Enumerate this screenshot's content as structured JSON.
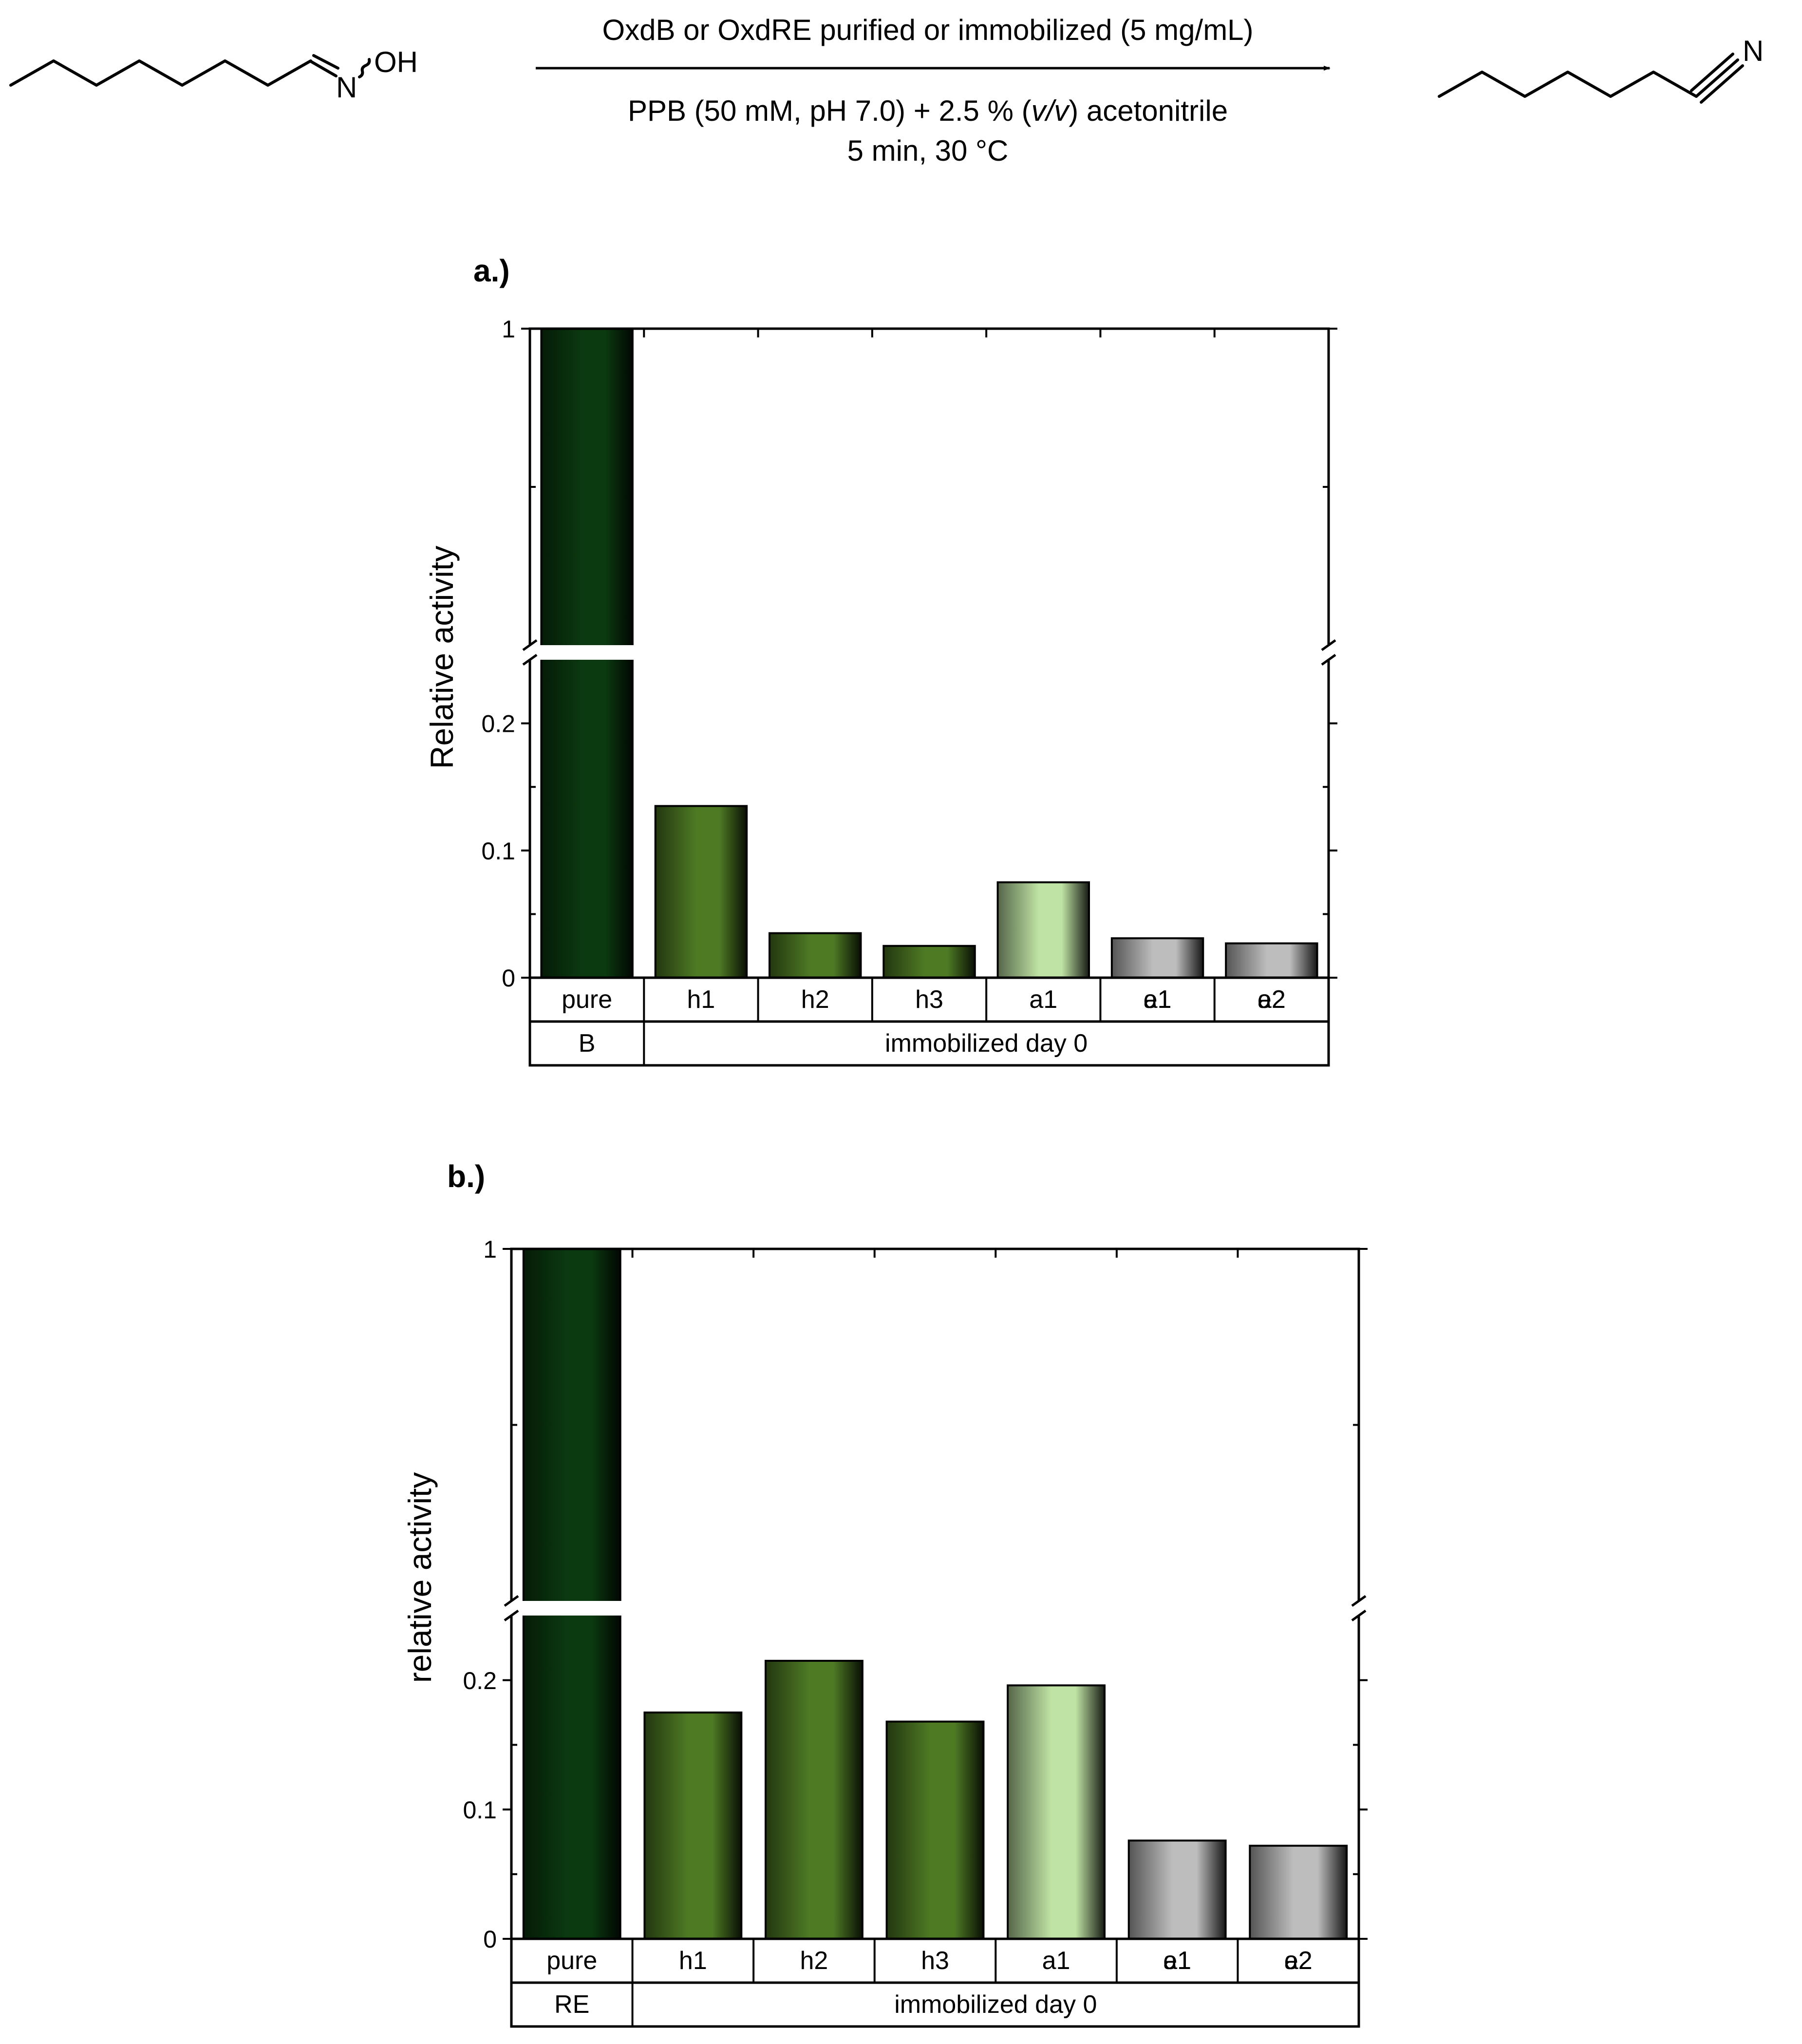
{
  "scheme": {
    "substrate_label": "N",
    "substrate_oh": "OH",
    "product_label": "N",
    "arrow_top": "OxdB or OxdRE purified or immobilized (5 mg/mL)",
    "arrow_bottom_line1_a": "PPB (50 mM, pH 7.0) + 2.5 % (",
    "arrow_bottom_line1_italic": "v/v",
    "arrow_bottom_line1_b": ") acetonitrile",
    "arrow_bottom_line2": "5 min, 30 °C"
  },
  "colors": {
    "pure": "#0b3a10",
    "green": "#4e7a24",
    "light_green": "#bfe3a4",
    "grey": "#bdbdbd"
  },
  "chart_data": [
    {
      "type": "bar",
      "panel_label": "a.)",
      "ylabel": "Relative activity",
      "categories": [
        "pure",
        "h1",
        "h2",
        "h3",
        "a1",
        "e1",
        "e2"
      ],
      "category_overlays": [
        "",
        "",
        "",
        "",
        "",
        "a1",
        "a2"
      ],
      "values": [
        1.0,
        0.135,
        0.035,
        0.025,
        0.075,
        0.031,
        0.027
      ],
      "color_keys": [
        "pure",
        "green",
        "green",
        "green",
        "light_green",
        "grey",
        "grey"
      ],
      "groups": [
        {
          "label": "B",
          "span": 1
        },
        {
          "label": "immobilized day 0",
          "span": 6
        }
      ],
      "y_break": [
        0.25,
        0.75
      ],
      "yticks_lower": [
        0,
        0.1,
        0.2
      ],
      "ytick_labels_lower": [
        "0",
        "0.1",
        "0.2"
      ],
      "yticks_upper": [
        1
      ],
      "ytick_labels_upper": [
        "1"
      ]
    },
    {
      "type": "bar",
      "panel_label": "b.)",
      "ylabel": "relative activity",
      "categories": [
        "pure",
        "h1",
        "h2",
        "h3",
        "a1",
        "e1",
        "e2"
      ],
      "category_overlays": [
        "",
        "",
        "",
        "",
        "",
        "a1",
        "a2"
      ],
      "values": [
        1.0,
        0.175,
        0.215,
        0.168,
        0.196,
        0.076,
        0.072
      ],
      "color_keys": [
        "pure",
        "green",
        "green",
        "green",
        "light_green",
        "grey",
        "grey"
      ],
      "groups": [
        {
          "label": "RE",
          "span": 1
        },
        {
          "label": "immobilized day 0",
          "span": 6
        }
      ],
      "y_break": [
        0.25,
        0.75
      ],
      "yticks_lower": [
        0,
        0.1,
        0.2
      ],
      "ytick_labels_lower": [
        "0",
        "0.1",
        "0.2"
      ],
      "yticks_upper": [
        1
      ],
      "ytick_labels_upper": [
        "1"
      ]
    }
  ]
}
